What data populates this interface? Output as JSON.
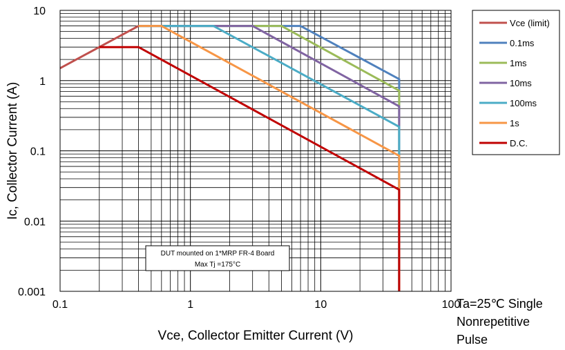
{
  "chart_data": {
    "type": "line",
    "xlabel": "Vce, Collector Emitter Current (V)",
    "ylabel": "Ic, Collector Current (A)",
    "x_scale": "log",
    "y_scale": "log",
    "xlim": [
      0.1,
      100
    ],
    "ylim": [
      0.001,
      10
    ],
    "x_ticks": [
      "0.1",
      "1",
      "10",
      "100"
    ],
    "y_ticks": [
      "0.001",
      "0.01",
      "0.1",
      "1",
      "10"
    ],
    "grid": true,
    "legend_position": "right",
    "annotation_lines": [
      "DUT mounted on 1*MRP FR-4 Board",
      "Max Tj =175°C"
    ],
    "condition_lines": [
      "Ta=25℃  Single",
      "Nonrepetitive",
      "Pulse"
    ],
    "series": [
      {
        "name": "Vce (limit)",
        "color": "#c0504d",
        "x": [
          0.1,
          0.2,
          0.4
        ],
        "y": [
          1.5,
          3,
          6
        ]
      },
      {
        "name": "0.1ms",
        "color": "#4f81bd",
        "x": [
          0.4,
          7,
          40,
          40
        ],
        "y": [
          6,
          6,
          1.05,
          0.001
        ]
      },
      {
        "name": "1ms",
        "color": "#9bbb59",
        "x": [
          0.4,
          5,
          40,
          40
        ],
        "y": [
          6,
          6,
          0.72,
          0.001
        ]
      },
      {
        "name": "10ms",
        "color": "#8064a2",
        "x": [
          0.4,
          3,
          40,
          40
        ],
        "y": [
          6,
          6,
          0.43,
          0.001
        ]
      },
      {
        "name": "100ms",
        "color": "#4bacc6",
        "x": [
          0.4,
          1.5,
          40,
          40
        ],
        "y": [
          6,
          6,
          0.22,
          0.001
        ]
      },
      {
        "name": "1s",
        "color": "#f79646",
        "x": [
          0.4,
          0.6,
          40,
          40
        ],
        "y": [
          6,
          6,
          0.085,
          0.001
        ]
      },
      {
        "name": "D.C.",
        "color": "#c00000",
        "x": [
          0.2,
          0.4,
          40,
          40
        ],
        "y": [
          3,
          3,
          0.028,
          0.001
        ]
      }
    ]
  }
}
